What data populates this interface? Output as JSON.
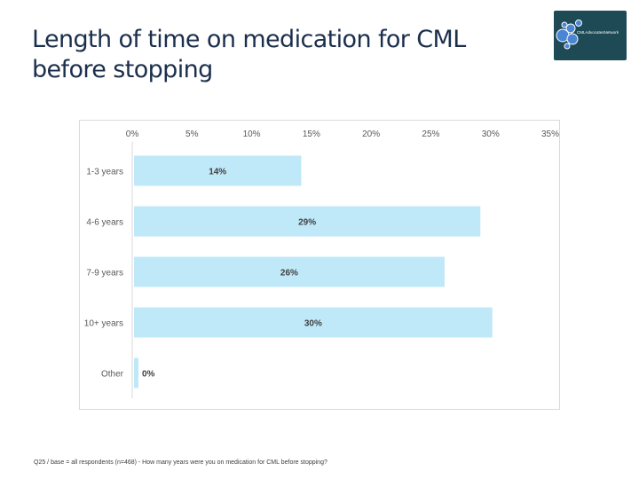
{
  "slide": {
    "title_line1": "Length of time on medication for CML",
    "title_line2": "before stopping",
    "footnote": "Q25 / base = all respondents (n=468) - How many years were you on medication for CML before stopping?",
    "logo_text": "CMLAdvocatesNetwork"
  },
  "colors": {
    "title": "#1b2f4c",
    "bar": "#bfe8f8",
    "logo_bg": "#1d4a55",
    "logo_accent": "#4a86d4"
  },
  "chart_data": {
    "type": "bar",
    "orientation": "horizontal",
    "title": "",
    "xlabel": "",
    "ylabel": "",
    "categories": [
      "1-3 years",
      "4-6 years",
      "7-9 years",
      "10+ years",
      "Other"
    ],
    "values": [
      14,
      29,
      26,
      30,
      0
    ],
    "labels": [
      "14%",
      "29%",
      "26%",
      "30%",
      "0%"
    ],
    "x_ticks": [
      "0%",
      "5%",
      "10%",
      "15%",
      "20%",
      "25%",
      "30%",
      "35%"
    ],
    "xlim": [
      0,
      35
    ],
    "axis_position": "top",
    "grid": false,
    "legend": false
  }
}
